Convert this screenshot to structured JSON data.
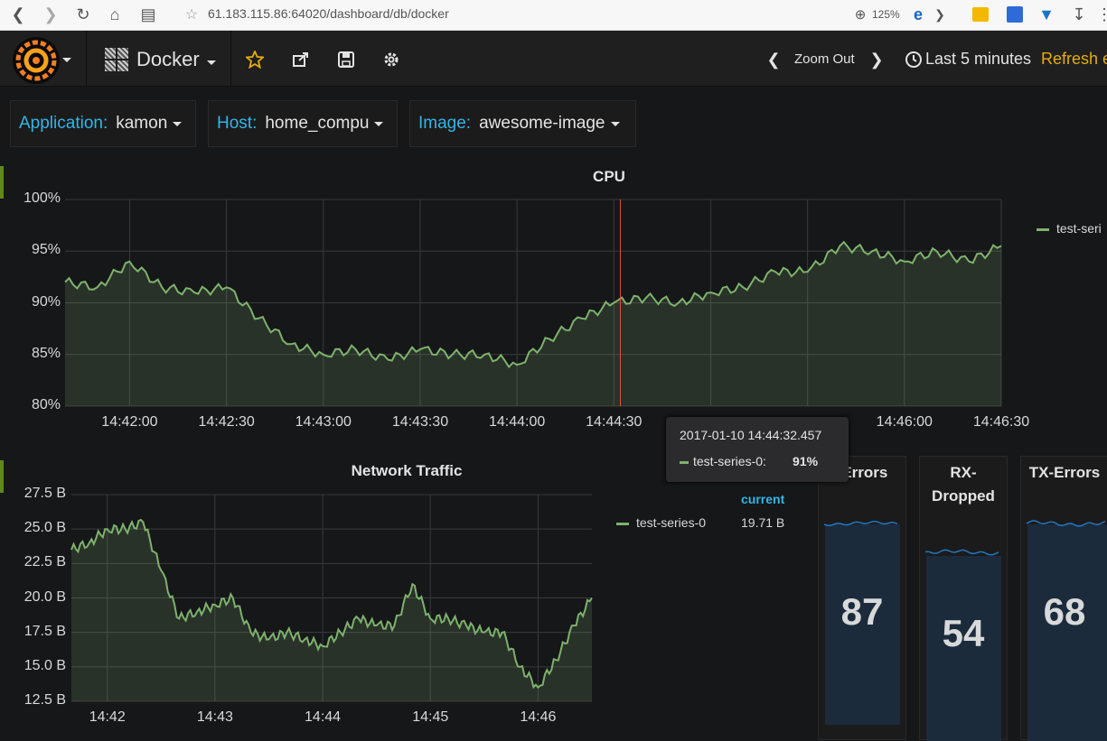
{
  "browser": {
    "url": "61.183.115.86:64020/dashboard/db/docker",
    "zoom": "125%"
  },
  "header": {
    "dashboard_title": "Docker",
    "zoom_out_label": "Zoom Out",
    "time_range_label": "Last 5 minutes",
    "refresh_label": "Refresh e"
  },
  "variables": [
    {
      "label": "Application:",
      "value": "kamon"
    },
    {
      "label": "Host:",
      "value": "home_compu"
    },
    {
      "label": "Image:",
      "value": "awesome-image"
    }
  ],
  "cpu_panel": {
    "title": "CPU",
    "legend": "test-seri",
    "y_ticks": [
      "100%",
      "95%",
      "90%",
      "85%",
      "80%"
    ],
    "x_ticks": [
      "14:42:00",
      "14:42:30",
      "14:43:00",
      "14:43:30",
      "14:44:00",
      "14:44:30",
      "14:46:00",
      "14:46:30"
    ]
  },
  "tooltip": {
    "time": "2017-01-10 14:44:32.457",
    "series": "test-series-0:",
    "value": "91%"
  },
  "network_panel": {
    "title": "Network Traffic",
    "legend_header": "current",
    "legend_series": "test-series-0",
    "legend_value": "19.71 B",
    "y_ticks": [
      "27.5 B",
      "25.0 B",
      "22.5 B",
      "20.0 B",
      "17.5 B",
      "15.0 B",
      "12.5 B"
    ],
    "x_ticks": [
      "14:42",
      "14:43",
      "14:44",
      "14:45",
      "14:46"
    ]
  },
  "stats": [
    {
      "title": "-Errors",
      "value": "87"
    },
    {
      "title_line1": "RX-",
      "title_line2": "Dropped",
      "value": "54"
    },
    {
      "title": "TX-Errors",
      "value": "68"
    }
  ],
  "colors": {
    "series_green": "#7eb26d",
    "accent_blue": "#33b5e5",
    "refresh_orange": "#e5ac0e",
    "annotation_red": "#e24d42"
  },
  "chart_data": [
    {
      "type": "area",
      "title": "CPU",
      "x": [
        "14:41:40",
        "14:41:50",
        "14:42:00",
        "14:42:10",
        "14:42:20",
        "14:42:30",
        "14:42:40",
        "14:42:50",
        "14:43:00",
        "14:43:10",
        "14:43:20",
        "14:43:30",
        "14:43:40",
        "14:43:50",
        "14:44:00",
        "14:44:10",
        "14:44:20",
        "14:44:30",
        "14:44:40",
        "14:44:50",
        "14:45:00",
        "14:45:10",
        "14:45:20",
        "14:45:30",
        "14:45:40",
        "14:45:50",
        "14:46:00",
        "14:46:10",
        "14:46:20",
        "14:46:30"
      ],
      "series": [
        {
          "name": "test-seri",
          "values": [
            92,
            91.5,
            94,
            91.5,
            91,
            91.5,
            88.5,
            86,
            85,
            85.5,
            84.5,
            85.5,
            85,
            85,
            84,
            86.5,
            88.5,
            90,
            90.5,
            90,
            91,
            91.5,
            93,
            93,
            95.5,
            95,
            94,
            95,
            94,
            95.5
          ]
        }
      ],
      "ylim": [
        80,
        100
      ],
      "y_ticks": [
        "100%",
        "95%",
        "90%",
        "85%",
        "80%"
      ]
    },
    {
      "type": "area",
      "title": "Network Traffic",
      "x": [
        "14:41:40",
        "14:41:50",
        "14:42:00",
        "14:42:10",
        "14:42:20",
        "14:42:30",
        "14:42:40",
        "14:42:50",
        "14:43:00",
        "14:43:10",
        "14:43:20",
        "14:43:30",
        "14:43:40",
        "14:43:50",
        "14:44:00",
        "14:44:10",
        "14:44:20",
        "14:44:30",
        "14:44:40",
        "14:44:50",
        "14:45:00",
        "14:45:10",
        "14:45:20",
        "14:45:30",
        "14:45:40",
        "14:45:50",
        "14:46:00",
        "14:46:10",
        "14:46:20",
        "14:46:30"
      ],
      "series": [
        {
          "name": "test-series-0",
          "values": [
            23.5,
            24,
            25,
            25,
            25.5,
            22,
            18.5,
            19,
            19.5,
            20,
            17.5,
            17,
            17.5,
            17,
            16.5,
            17.5,
            18.5,
            18,
            18,
            21,
            18.5,
            18.5,
            18,
            17.5,
            17.5,
            15,
            13.5,
            15.5,
            18,
            20
          ]
        }
      ],
      "ylim": [
        12.5,
        27.5
      ]
    }
  ]
}
